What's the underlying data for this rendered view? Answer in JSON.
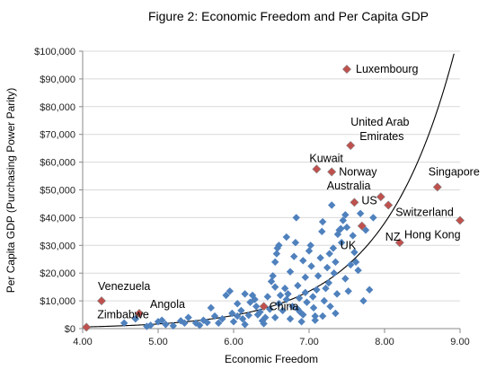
{
  "chart_data": {
    "type": "scatter",
    "title": "Figure 2: Economic Freedom and Per Capita GDP",
    "xlabel": "Economic Freedom",
    "ylabel": "Per Capita GDP (Purchasing Power Parity)",
    "xlim": [
      4.0,
      9.0
    ],
    "ylim": [
      0,
      100000
    ],
    "x_ticks": [
      4.0,
      5.0,
      6.0,
      7.0,
      8.0,
      9.0
    ],
    "x_tick_labels": [
      "4.00",
      "5.00",
      "6.00",
      "7.00",
      "8.00",
      "9.00"
    ],
    "y_ticks": [
      0,
      10000,
      20000,
      30000,
      40000,
      50000,
      60000,
      70000,
      80000,
      90000,
      100000
    ],
    "y_tick_labels": [
      "$0",
      "$10,000",
      "$20,000",
      "$30,000",
      "$40,000",
      "$50,000",
      "$60,000",
      "$70,000",
      "$80,000",
      "$90,000",
      "$100,000"
    ],
    "grid": "horizontal",
    "colors": {
      "point": "#4f81bd",
      "highlight": "#c0504d",
      "trend": "#000000",
      "grid": "#d9d9d9"
    },
    "trendline": {
      "type": "exponential",
      "a": 9.27,
      "b": 1.04
    },
    "highlighted": [
      {
        "label": "Luxembourg",
        "x": 7.5,
        "y": 93500
      },
      {
        "label": "United Arab Emirates",
        "label_lines": [
          "United Arab",
          "Emirates"
        ],
        "x": 7.55,
        "y": 66000
      },
      {
        "label": "Kuwait",
        "x": 7.1,
        "y": 57500
      },
      {
        "label": "Norway",
        "x": 7.3,
        "y": 56500
      },
      {
        "label": "Singapore",
        "x": 8.7,
        "y": 51000
      },
      {
        "label": "Australia",
        "x": 7.95,
        "y": 47500
      },
      {
        "label": "US",
        "x": 7.6,
        "y": 45500
      },
      {
        "label": "Switzerland",
        "x": 8.05,
        "y": 44500
      },
      {
        "label": "Hong Kong",
        "x": 9.0,
        "y": 39000
      },
      {
        "label": "UK",
        "x": 7.7,
        "y": 37000
      },
      {
        "label": "NZ",
        "x": 8.2,
        "y": 31000
      },
      {
        "label": "Venezuela",
        "x": 4.25,
        "y": 10000
      },
      {
        "label": "Angola",
        "x": 4.75,
        "y": 5500
      },
      {
        "label": "China",
        "x": 6.4,
        "y": 8000
      },
      {
        "label": "Zimbabwe",
        "x": 4.05,
        "y": 500
      }
    ],
    "points": [
      [
        4.55,
        2000
      ],
      [
        4.7,
        3500
      ],
      [
        4.85,
        800
      ],
      [
        4.9,
        1200
      ],
      [
        5.0,
        2500
      ],
      [
        5.05,
        3000
      ],
      [
        5.1,
        1500
      ],
      [
        5.2,
        1000
      ],
      [
        5.3,
        2800
      ],
      [
        5.35,
        2000
      ],
      [
        5.4,
        4000
      ],
      [
        5.5,
        2000
      ],
      [
        5.55,
        1200
      ],
      [
        5.6,
        3000
      ],
      [
        5.65,
        2200
      ],
      [
        5.7,
        7500
      ],
      [
        5.75,
        4500
      ],
      [
        5.8,
        2000
      ],
      [
        5.85,
        3500
      ],
      [
        5.9,
        12000
      ],
      [
        5.95,
        13500
      ],
      [
        5.98,
        5500
      ],
      [
        6.0,
        2500
      ],
      [
        6.05,
        4500
      ],
      [
        6.1,
        6500
      ],
      [
        6.12,
        3500
      ],
      [
        6.15,
        1500
      ],
      [
        6.2,
        4800
      ],
      [
        6.22,
        9500
      ],
      [
        6.25,
        12000
      ],
      [
        6.28,
        10500
      ],
      [
        6.3,
        8000
      ],
      [
        6.32,
        5000
      ],
      [
        6.35,
        6000
      ],
      [
        6.38,
        2800
      ],
      [
        6.4,
        1800
      ],
      [
        6.42,
        4000
      ],
      [
        6.45,
        11500
      ],
      [
        6.48,
        7000
      ],
      [
        6.5,
        17000
      ],
      [
        6.52,
        19000
      ],
      [
        6.55,
        24000
      ],
      [
        6.57,
        27000
      ],
      [
        6.58,
        29000
      ],
      [
        6.6,
        30000
      ],
      [
        6.55,
        4000
      ],
      [
        6.6,
        9000
      ],
      [
        6.62,
        12000
      ],
      [
        6.65,
        6500
      ],
      [
        6.68,
        14500
      ],
      [
        6.7,
        10500
      ],
      [
        6.72,
        12500
      ],
      [
        6.75,
        3500
      ],
      [
        6.78,
        8000
      ],
      [
        6.8,
        26000
      ],
      [
        6.82,
        31000
      ],
      [
        6.83,
        40000
      ],
      [
        6.85,
        15500
      ],
      [
        6.87,
        11000
      ],
      [
        6.88,
        6000
      ],
      [
        6.9,
        2500
      ],
      [
        6.92,
        5000
      ],
      [
        6.95,
        13000
      ],
      [
        6.97,
        9500
      ],
      [
        7.0,
        28000
      ],
      [
        7.02,
        30000
      ],
      [
        7.03,
        22500
      ],
      [
        7.05,
        11500
      ],
      [
        7.06,
        7500
      ],
      [
        7.08,
        4500
      ],
      [
        7.1,
        14000
      ],
      [
        7.12,
        19000
      ],
      [
        7.15,
        25500
      ],
      [
        7.17,
        35000
      ],
      [
        7.18,
        38500
      ],
      [
        7.2,
        10000
      ],
      [
        7.22,
        14500
      ],
      [
        7.24,
        22000
      ],
      [
        7.26,
        16500
      ],
      [
        7.27,
        27000
      ],
      [
        7.28,
        8000
      ],
      [
        7.3,
        44500
      ],
      [
        7.32,
        29000
      ],
      [
        7.33,
        20000
      ],
      [
        7.35,
        24000
      ],
      [
        7.37,
        12500
      ],
      [
        7.38,
        34000
      ],
      [
        7.4,
        35500
      ],
      [
        7.42,
        36000
      ],
      [
        7.43,
        31000
      ],
      [
        7.45,
        39000
      ],
      [
        7.48,
        41000
      ],
      [
        7.5,
        36500
      ],
      [
        7.52,
        13500
      ],
      [
        7.55,
        23000
      ],
      [
        7.58,
        33500
      ],
      [
        7.6,
        27500
      ],
      [
        7.62,
        24000
      ],
      [
        7.65,
        21000
      ],
      [
        7.68,
        41500
      ],
      [
        7.72,
        10000
      ],
      [
        7.75,
        35500
      ],
      [
        7.8,
        14000
      ],
      [
        7.85,
        40000
      ],
      [
        6.15,
        12500
      ],
      [
        6.05,
        9000
      ],
      [
        6.55,
        15000
      ],
      [
        6.75,
        20500
      ],
      [
        6.95,
        18500
      ],
      [
        7.18,
        4500
      ],
      [
        7.08,
        3000
      ],
      [
        6.92,
        24500
      ],
      [
        6.85,
        7000
      ],
      [
        7.35,
        5500
      ],
      [
        7.48,
        18000
      ],
      [
        6.7,
        33000
      ]
    ]
  }
}
